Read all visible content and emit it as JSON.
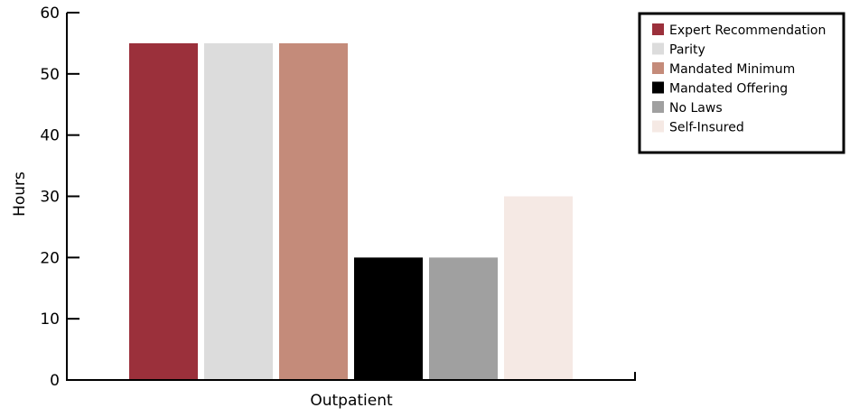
{
  "chart_data": {
    "type": "bar",
    "categories": [
      "Outpatient"
    ],
    "series": [
      {
        "name": "Expert Recommendation",
        "values": [
          55
        ],
        "color": "#9b303b"
      },
      {
        "name": "Parity",
        "values": [
          55
        ],
        "color": "#dcdcdc"
      },
      {
        "name": "Mandated Minimum",
        "values": [
          55
        ],
        "color": "#c48b7a"
      },
      {
        "name": "Mandated Offering",
        "values": [
          20
        ],
        "color": "#000000"
      },
      {
        "name": "No Laws",
        "values": [
          20
        ],
        "color": "#a0a0a0"
      },
      {
        "name": "Self-Insured",
        "values": [
          30
        ],
        "color": "#f5e9e4"
      }
    ],
    "xlabel": "Outpatient",
    "ylabel": "Hours",
    "ylim": [
      0,
      60
    ],
    "yticks": [
      "0",
      "10",
      "20",
      "30",
      "40",
      "50",
      "60"
    ],
    "grid": false,
    "legend_position": "top-right"
  }
}
